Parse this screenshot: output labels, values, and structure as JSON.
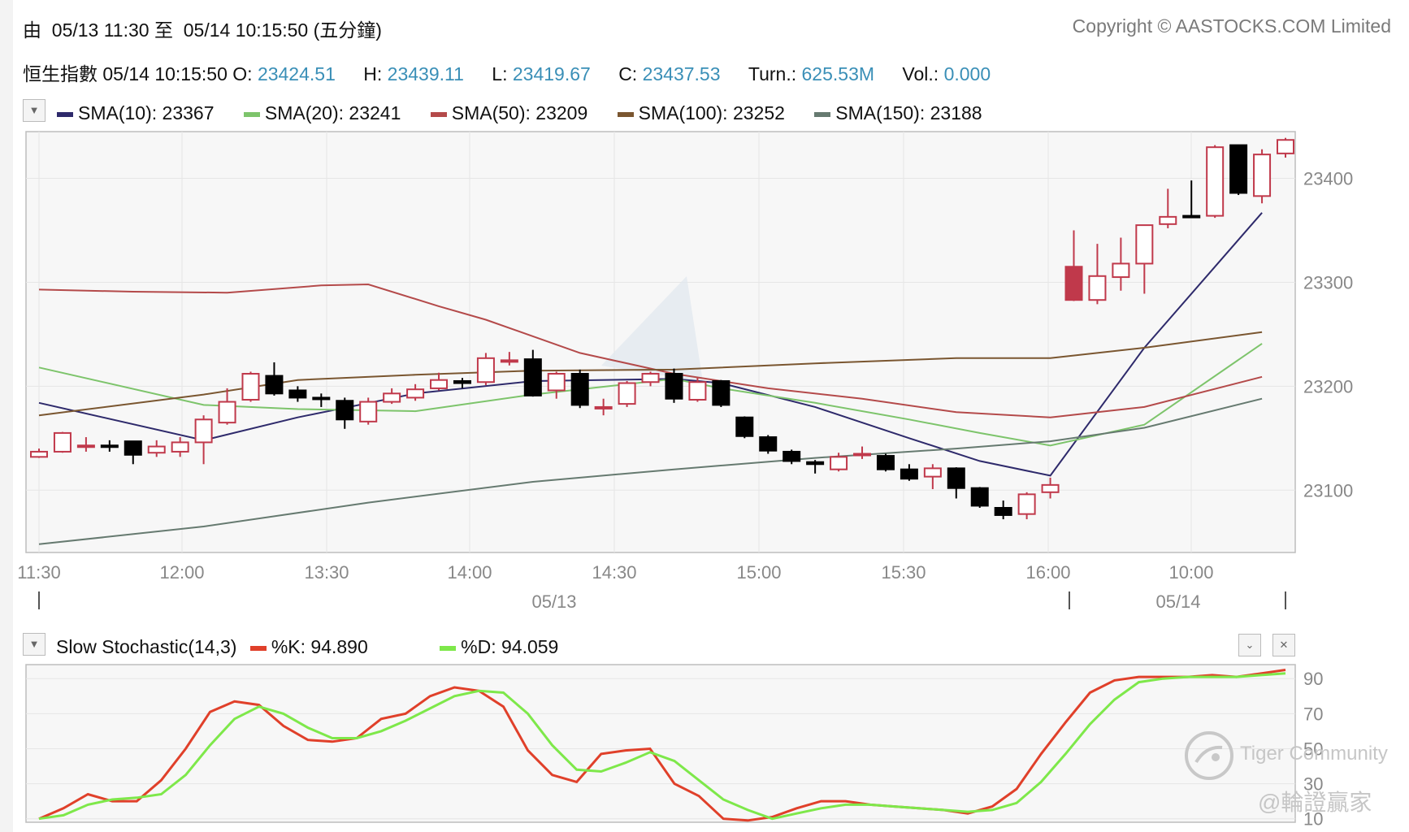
{
  "header": {
    "range_prefix": "由",
    "range_from": "05/13 11:30",
    "range_mid": "至",
    "range_to": "05/14 10:15:50",
    "range_unit": "(五分鐘)",
    "copyright": "Copyright © AASTOCKS.COM Limited"
  },
  "quote": {
    "name": "恒生指數",
    "time": "05/14 10:15:50",
    "o_label": "O:",
    "o": "23424.51",
    "h_label": "H:",
    "h": "23439.11",
    "l_label": "L:",
    "l": "23419.67",
    "c_label": "C:",
    "c": "23437.53",
    "turn_label": "Turn.:",
    "turn": "625.53M",
    "vol_label": "Vol.:",
    "vol": "0.000"
  },
  "sma_legend": [
    {
      "label": "SMA(10): 23367",
      "color": "#2e2a6b"
    },
    {
      "label": "SMA(20): 23241",
      "color": "#7dc46b"
    },
    {
      "label": "SMA(50): 23209",
      "color": "#b44a4a"
    },
    {
      "label": "SMA(100): 23252",
      "color": "#7a5630"
    },
    {
      "label": "SMA(150): 23188",
      "color": "#667a70"
    }
  ],
  "stoch_legend": {
    "title": "Slow Stochastic(14,3)",
    "k_label": "%K: 94.890",
    "k_color": "#e0402a",
    "d_label": "%D: 94.059",
    "d_color": "#7ee84a"
  },
  "watermark": {
    "brand": "Tiger Community",
    "handle": "@輪證贏家"
  },
  "chart_data": [
    {
      "type": "candlestick",
      "y_ticks": [
        "23400",
        "23300",
        "23200",
        "23100"
      ],
      "ylim": [
        23040,
        23445
      ],
      "x_tick_labels": [
        "11:30",
        "12:00",
        "13:30",
        "14:00",
        "14:30",
        "15:00",
        "15:30",
        "16:00",
        "10:00"
      ],
      "date_labels": [
        "05/13",
        "05/14"
      ],
      "up_color": "#c0394b",
      "down_color": "#000000",
      "candles": [
        {
          "t": "11:30",
          "o": 23132,
          "c": 23137,
          "h": 23140,
          "l": 23131
        },
        {
          "t": "11:35",
          "o": 23137,
          "c": 23155,
          "h": 23156,
          "l": 23136
        },
        {
          "t": "11:40",
          "o": 23143,
          "c": 23143,
          "h": 23151,
          "l": 23137
        },
        {
          "t": "11:45",
          "o": 23143,
          "c": 23142,
          "h": 23148,
          "l": 23137
        },
        {
          "t": "11:50",
          "o": 23147,
          "c": 23134,
          "h": 23147,
          "l": 23125
        },
        {
          "t": "11:55",
          "o": 23136,
          "c": 23142,
          "h": 23148,
          "l": 23132
        },
        {
          "t": "12:00",
          "o": 23137,
          "c": 23146,
          "h": 23151,
          "l": 23132
        },
        {
          "t": "13:00",
          "o": 23146,
          "c": 23168,
          "h": 23172,
          "l": 23125
        },
        {
          "t": "13:05",
          "o": 23165,
          "c": 23185,
          "h": 23198,
          "l": 23163
        },
        {
          "t": "13:10",
          "o": 23187,
          "c": 23212,
          "h": 23214,
          "l": 23185
        },
        {
          "t": "13:15",
          "o": 23210,
          "c": 23193,
          "h": 23223,
          "l": 23191
        },
        {
          "t": "13:20",
          "o": 23196,
          "c": 23189,
          "h": 23200,
          "l": 23185
        },
        {
          "t": "13:25",
          "o": 23189,
          "c": 23188,
          "h": 23193,
          "l": 23180
        },
        {
          "t": "13:30",
          "o": 23186,
          "c": 23168,
          "h": 23189,
          "l": 23159
        },
        {
          "t": "13:35",
          "o": 23166,
          "c": 23185,
          "h": 23189,
          "l": 23163
        },
        {
          "t": "13:40",
          "o": 23185,
          "c": 23193,
          "h": 23198,
          "l": 23183
        },
        {
          "t": "13:45",
          "o": 23189,
          "c": 23197,
          "h": 23202,
          "l": 23186
        },
        {
          "t": "13:50",
          "o": 23198,
          "c": 23206,
          "h": 23213,
          "l": 23196
        },
        {
          "t": "13:55",
          "o": 23205,
          "c": 23203,
          "h": 23208,
          "l": 23198
        },
        {
          "t": "14:00",
          "o": 23204,
          "c": 23227,
          "h": 23232,
          "l": 23201
        },
        {
          "t": "14:05",
          "o": 23224,
          "c": 23225,
          "h": 23233,
          "l": 23220
        },
        {
          "t": "14:10",
          "o": 23226,
          "c": 23191,
          "h": 23235,
          "l": 23190
        },
        {
          "t": "14:15",
          "o": 23196,
          "c": 23212,
          "h": 23214,
          "l": 23188
        },
        {
          "t": "14:20",
          "o": 23212,
          "c": 23182,
          "h": 23216,
          "l": 23179
        },
        {
          "t": "14:25",
          "o": 23180,
          "c": 23180,
          "h": 23188,
          "l": 23172
        },
        {
          "t": "14:30",
          "o": 23183,
          "c": 23203,
          "h": 23205,
          "l": 23180
        },
        {
          "t": "14:35",
          "o": 23204,
          "c": 23212,
          "h": 23214,
          "l": 23200
        },
        {
          "t": "14:40",
          "o": 23212,
          "c": 23188,
          "h": 23217,
          "l": 23184
        },
        {
          "t": "14:45",
          "o": 23187,
          "c": 23204,
          "h": 23208,
          "l": 23185
        },
        {
          "t": "14:50",
          "o": 23205,
          "c": 23182,
          "h": 23206,
          "l": 23180
        },
        {
          "t": "14:55",
          "o": 23170,
          "c": 23152,
          "h": 23171,
          "l": 23150
        },
        {
          "t": "15:00",
          "o": 23151,
          "c": 23138,
          "h": 23153,
          "l": 23135
        },
        {
          "t": "15:05",
          "o": 23137,
          "c": 23128,
          "h": 23139,
          "l": 23125
        },
        {
          "t": "15:10",
          "o": 23127,
          "c": 23125,
          "h": 23129,
          "l": 23116
        },
        {
          "t": "15:15",
          "o": 23120,
          "c": 23132,
          "h": 23136,
          "l": 23118
        },
        {
          "t": "15:20",
          "o": 23135,
          "c": 23135,
          "h": 23142,
          "l": 23130
        },
        {
          "t": "15:25",
          "o": 23133,
          "c": 23120,
          "h": 23135,
          "l": 23118
        },
        {
          "t": "15:30",
          "o": 23120,
          "c": 23111,
          "h": 23125,
          "l": 23109
        },
        {
          "t": "15:35",
          "o": 23113,
          "c": 23121,
          "h": 23125,
          "l": 23101
        },
        {
          "t": "15:40",
          "o": 23121,
          "c": 23102,
          "h": 23122,
          "l": 23092
        },
        {
          "t": "15:45",
          "o": 23102,
          "c": 23085,
          "h": 23103,
          "l": 23083
        },
        {
          "t": "15:50",
          "o": 23083,
          "c": 23076,
          "h": 23090,
          "l": 23072
        },
        {
          "t": "15:55",
          "o": 23077,
          "c": 23096,
          "h": 23098,
          "l": 23072
        },
        {
          "t": "16:00",
          "o": 23098,
          "c": 23105,
          "h": 23112,
          "l": 23092
        },
        {
          "t": "09:30",
          "o": 23283,
          "c": 23315,
          "h": 23350,
          "l": 23282
        },
        {
          "t": "09:35",
          "o": 23283,
          "c": 23306,
          "h": 23337,
          "l": 23279
        },
        {
          "t": "09:40",
          "o": 23305,
          "c": 23318,
          "h": 23343,
          "l": 23292
        },
        {
          "t": "09:45",
          "o": 23318,
          "c": 23355,
          "h": 23355,
          "l": 23289
        },
        {
          "t": "09:50",
          "o": 23356,
          "c": 23363,
          "h": 23390,
          "l": 23352
        },
        {
          "t": "09:55",
          "o": 23364,
          "c": 23363,
          "h": 23398,
          "l": 23362
        },
        {
          "t": "10:00",
          "o": 23364,
          "c": 23430,
          "h": 23432,
          "l": 23362
        },
        {
          "t": "10:05",
          "o": 23432,
          "c": 23386,
          "h": 23432,
          "l": 23384
        },
        {
          "t": "10:10",
          "o": 23383,
          "c": 23423,
          "h": 23428,
          "l": 23376
        },
        {
          "t": "10:15",
          "o": 23424,
          "c": 23437,
          "h": 23439,
          "l": 23420
        }
      ],
      "sma_lines": [
        {
          "name": "SMA(10)",
          "color": "#2e2a6b",
          "points": [
            [
              0,
              23184
            ],
            [
              7,
              23148
            ],
            [
              11,
              23170
            ],
            [
              16,
              23193
            ],
            [
              21,
              23205
            ],
            [
              27,
              23207
            ],
            [
              29,
              23203
            ],
            [
              33,
              23180
            ],
            [
              37,
              23150
            ],
            [
              40,
              23128
            ],
            [
              43,
              23114
            ],
            [
              47,
              23237
            ],
            [
              52,
              23367
            ]
          ]
        },
        {
          "name": "SMA(20)",
          "color": "#7dc46b",
          "points": [
            [
              0,
              23218
            ],
            [
              7,
              23182
            ],
            [
              11,
              23178
            ],
            [
              16,
              23176
            ],
            [
              21,
              23192
            ],
            [
              27,
              23207
            ],
            [
              29,
              23198
            ],
            [
              33,
              23184
            ],
            [
              37,
              23168
            ],
            [
              40,
              23155
            ],
            [
              43,
              23143
            ],
            [
              47,
              23163
            ],
            [
              52,
              23241
            ]
          ]
        },
        {
          "name": "SMA(50)",
          "color": "#b44a4a",
          "points": [
            [
              0,
              23293
            ],
            [
              4,
              23291
            ],
            [
              8,
              23290
            ],
            [
              12,
              23297
            ],
            [
              14,
              23298
            ],
            [
              17,
              23277
            ],
            [
              19,
              23264
            ],
            [
              23,
              23232
            ],
            [
              27,
              23212
            ],
            [
              31,
              23198
            ],
            [
              35,
              23188
            ],
            [
              39,
              23175
            ],
            [
              43,
              23170
            ],
            [
              47,
              23180
            ],
            [
              52,
              23209
            ]
          ]
        },
        {
          "name": "SMA(100)",
          "color": "#7a5630",
          "points": [
            [
              0,
              23172
            ],
            [
              7,
              23192
            ],
            [
              11,
              23206
            ],
            [
              16,
              23211
            ],
            [
              21,
              23215
            ],
            [
              27,
              23216
            ],
            [
              33,
              23222
            ],
            [
              39,
              23227
            ],
            [
              43,
              23227
            ],
            [
              47,
              23237
            ],
            [
              52,
              23252
            ]
          ]
        },
        {
          "name": "SMA(150)",
          "color": "#667a70",
          "points": [
            [
              0,
              23048
            ],
            [
              7,
              23065
            ],
            [
              14,
              23088
            ],
            [
              21,
              23108
            ],
            [
              27,
              23120
            ],
            [
              33,
              23131
            ],
            [
              39,
              23140
            ],
            [
              43,
              23147
            ],
            [
              47,
              23160
            ],
            [
              52,
              23188
            ]
          ]
        }
      ]
    },
    {
      "type": "line",
      "title": "Slow Stochastic(14,3)",
      "y_ticks": [
        "90",
        "70",
        "50",
        "30",
        "10"
      ],
      "ylim": [
        8,
        98
      ],
      "series": [
        {
          "name": "%K",
          "values": [
            10,
            16,
            24,
            20,
            20,
            32,
            50,
            71,
            77,
            75,
            63,
            55,
            54,
            56,
            67,
            70,
            80,
            85,
            83,
            74,
            49,
            35,
            31,
            47,
            49,
            50,
            30,
            23,
            10,
            9,
            11,
            16,
            20,
            20,
            18,
            17,
            16,
            15,
            13,
            17,
            27,
            47,
            65,
            82,
            89,
            91,
            91,
            91,
            92,
            91,
            93,
            95
          ]
        },
        {
          "name": "%D",
          "values": [
            10,
            12,
            18,
            21,
            22,
            24,
            35,
            52,
            67,
            74,
            70,
            62,
            56,
            56,
            60,
            66,
            73,
            80,
            83,
            82,
            70,
            52,
            38,
            37,
            42,
            48,
            43,
            32,
            21,
            15,
            10,
            13,
            16,
            18,
            18,
            17,
            16,
            15,
            14,
            15,
            19,
            31,
            47,
            64,
            78,
            88,
            90,
            91,
            91,
            91,
            92,
            93
          ]
        }
      ]
    }
  ]
}
